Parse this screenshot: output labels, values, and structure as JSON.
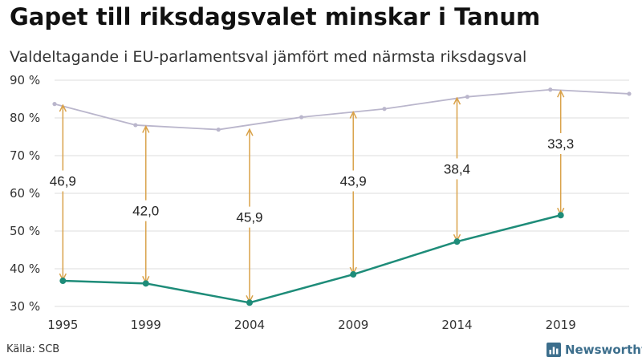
{
  "title": "Gapet till riksdagsvalet minskar i Tanum",
  "subtitle": "Valdeltagande i EU-parlamentsval jämfört med närmsta riksdagsval",
  "source": "Källa: SCB",
  "brand": {
    "name": "Newsworthy",
    "icon": "bar-chart-icon",
    "color": "#3c6e8c"
  },
  "colors": {
    "eu": "#1e8c79",
    "riksdag": "#bab6cc",
    "gap_arrow": "#d9a24a",
    "grid": "#dddddd"
  },
  "chart_data": {
    "type": "line",
    "title": "Gapet till riksdagsvalet minskar i Tanum",
    "subtitle": "Valdeltagande i EU-parlamentsval jämfört med närmsta riksdagsval",
    "ylim": [
      30,
      90
    ],
    "yticks": [
      30,
      40,
      50,
      60,
      70,
      80,
      90
    ],
    "ytick_labels": [
      "30 %",
      "40 %",
      "50 %",
      "60 %",
      "70 %",
      "80 %",
      "90 %"
    ],
    "xlim": [
      1994.6,
      2022.3
    ],
    "xticks": [
      1995,
      1999,
      2004,
      2009,
      2014,
      2019
    ],
    "xtick_labels": [
      "1995",
      "1999",
      "2004",
      "2009",
      "2014",
      "2019"
    ],
    "grid": "horizontal",
    "series": [
      {
        "key": "eu",
        "x": [
          1995,
          1999,
          2004,
          2009,
          2014,
          2019
        ],
        "values": [
          36.8,
          36.1,
          31.0,
          38.5,
          47.2,
          54.2
        ]
      },
      {
        "key": "riksdag",
        "x": [
          1994.6,
          1998.5,
          2002.5,
          2006.5,
          2010.5,
          2014.5,
          2018.5,
          2022.3
        ],
        "values": [
          83.7,
          78.1,
          76.9,
          80.2,
          82.4,
          85.6,
          87.5,
          86.4
        ]
      }
    ],
    "gaps": [
      {
        "x": 1995,
        "from": 36.8,
        "to": 83.6,
        "label": "46,9",
        "label_y": 63.3
      },
      {
        "x": 1999,
        "from": 36.1,
        "to": 78.0,
        "label": "42,0",
        "label_y": 55.4
      },
      {
        "x": 2004,
        "from": 31.0,
        "to": 77.2,
        "label": "45,9",
        "label_y": 53.7
      },
      {
        "x": 2009,
        "from": 38.5,
        "to": 81.8,
        "label": "43,9",
        "label_y": 63.3
      },
      {
        "x": 2014,
        "from": 47.2,
        "to": 85.5,
        "label": "38,4",
        "label_y": 66.5
      },
      {
        "x": 2019,
        "from": 54.2,
        "to": 87.4,
        "label": "33,3",
        "label_y": 73.2
      }
    ]
  }
}
